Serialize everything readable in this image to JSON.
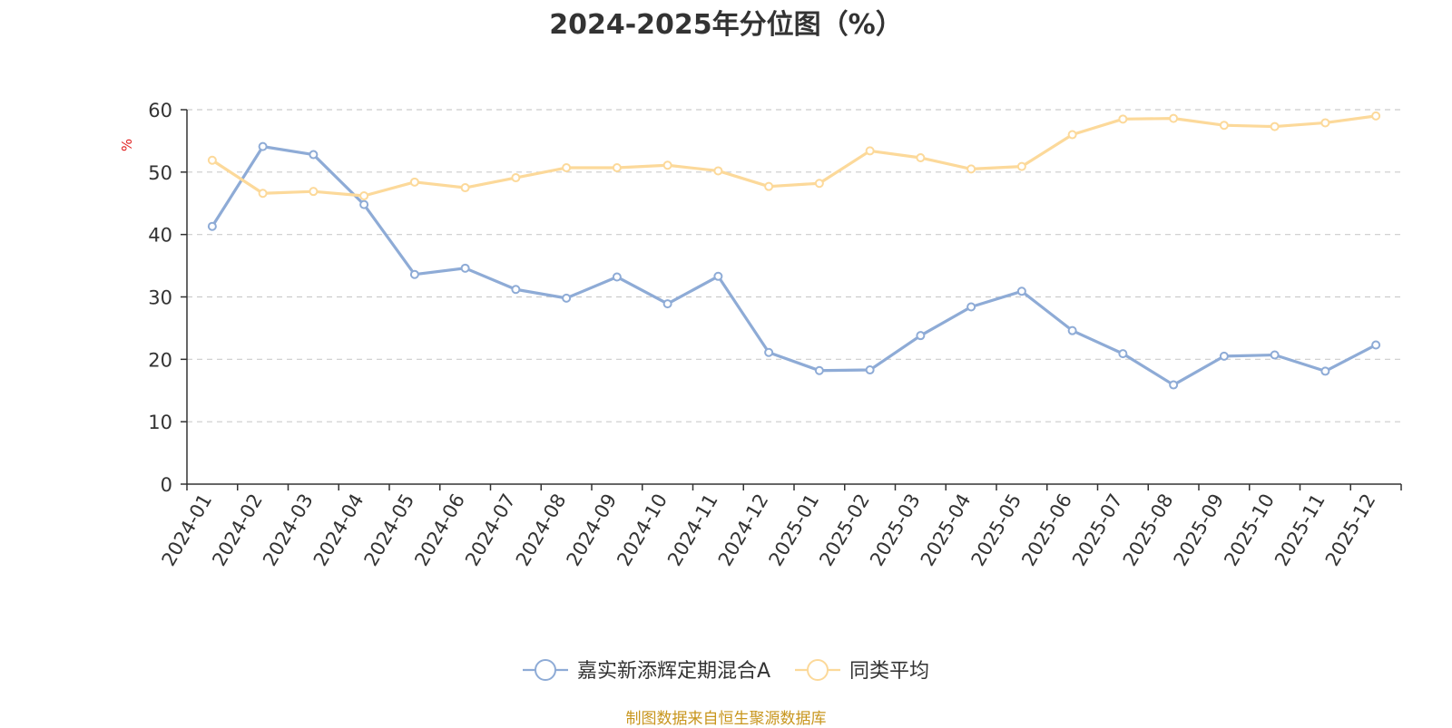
{
  "chart_data": {
    "type": "line",
    "title": "2024-2025年分位图（%）",
    "ylabel": "%",
    "xlabel": "",
    "ylim": [
      0,
      60
    ],
    "yticks": [
      0,
      10,
      20,
      30,
      40,
      50,
      60
    ],
    "grid": true,
    "legend_position": "bottom",
    "categories": [
      "2024-01",
      "2024-02",
      "2024-03",
      "2024-04",
      "2024-05",
      "2024-06",
      "2024-07",
      "2024-08",
      "2024-09",
      "2024-10",
      "2024-11",
      "2024-12",
      "2025-01",
      "2025-02",
      "2025-03",
      "2025-04",
      "2025-05",
      "2025-06",
      "2025-07",
      "2025-08",
      "2025-09",
      "2025-10",
      "2025-11",
      "2025-12"
    ],
    "series": [
      {
        "name": "嘉实新添辉定期混合A",
        "color": "#8eabd6",
        "values": [
          41.3,
          54.1,
          52.8,
          44.8,
          33.6,
          34.6,
          31.2,
          29.8,
          33.2,
          28.9,
          33.3,
          21.1,
          18.2,
          18.3,
          23.8,
          28.4,
          30.9,
          24.6,
          20.9,
          15.9,
          20.5,
          20.7,
          18.1,
          22.3
        ]
      },
      {
        "name": "同类平均",
        "color": "#fcd99a",
        "values": [
          51.9,
          46.6,
          46.9,
          46.2,
          48.4,
          47.5,
          49.1,
          50.7,
          50.7,
          51.1,
          50.2,
          47.7,
          48.2,
          53.4,
          52.3,
          50.5,
          50.9,
          56.0,
          58.5,
          58.6,
          57.5,
          57.3,
          57.9,
          59.0
        ]
      }
    ]
  },
  "footer": {
    "source": "制图数据来自恒生聚源数据库"
  }
}
